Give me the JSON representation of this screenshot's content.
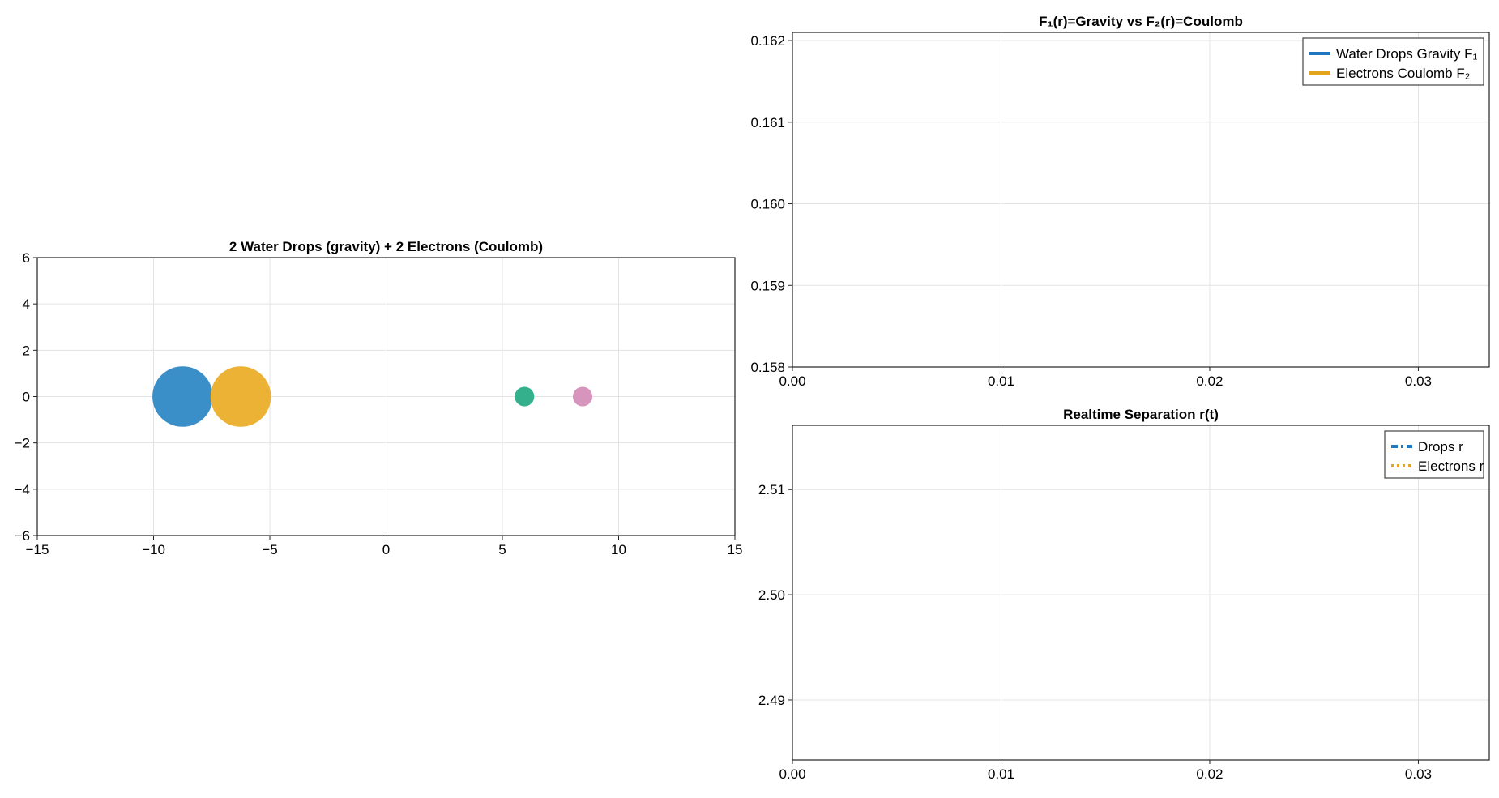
{
  "chart_data": [
    {
      "type": "scatter",
      "title": "2 Water Drops (gravity) + 2 Electrons (Coulomb)",
      "xlim": [
        -15,
        15
      ],
      "ylim": [
        -6,
        6
      ],
      "xticks": [
        -15,
        -10,
        -5,
        0,
        5,
        10,
        15
      ],
      "yticks": [
        -6,
        -4,
        -2,
        0,
        2,
        4,
        6
      ],
      "xtick_labels": [
        "−15",
        "−10",
        "−5",
        "0",
        "5",
        "10",
        "15"
      ],
      "ytick_labels": [
        "−6",
        "−4",
        "−2",
        "0",
        "2",
        "4",
        "6"
      ],
      "grid": true,
      "points": [
        {
          "x": -8.75,
          "y": 0,
          "radius": 1.3,
          "color": "#3a8fc9"
        },
        {
          "x": -6.25,
          "y": 0,
          "radius": 1.3,
          "color": "#ecb235"
        },
        {
          "x": 5.95,
          "y": 0,
          "radius": 0.42,
          "color": "#35b08c"
        },
        {
          "x": 8.45,
          "y": 0,
          "radius": 0.42,
          "color": "#d795bd"
        }
      ]
    },
    {
      "type": "line",
      "title": "F₁(r)=Gravity   vs   F₂(r)=Coulomb",
      "xlim": [
        0,
        0.0334
      ],
      "ylim": [
        0.158,
        0.1621
      ],
      "xticks": [
        0,
        0.01,
        0.02,
        0.03
      ],
      "yticks": [
        0.158,
        0.159,
        0.16,
        0.161,
        0.162
      ],
      "xtick_labels": [
        "0.00",
        "0.01",
        "0.02",
        "0.03"
      ],
      "ytick_labels": [
        "0.158",
        "0.159",
        "0.160",
        "0.161",
        "0.162"
      ],
      "grid": true,
      "legend_position": "top-right",
      "series": [
        {
          "name": "Water Drops Gravity F₁",
          "color": "#1f77c0",
          "style": "solid",
          "values": []
        },
        {
          "name": "Electrons Coulomb F₂",
          "color": "#e3a41e",
          "style": "solid",
          "values": []
        }
      ]
    },
    {
      "type": "line",
      "title": "Realtime Separation r(t)",
      "xlim": [
        0,
        0.0334
      ],
      "ylim": [
        2.4843,
        2.5161
      ],
      "xticks": [
        0,
        0.01,
        0.02,
        0.03
      ],
      "yticks": [
        2.49,
        2.5,
        2.51
      ],
      "xtick_labels": [
        "0.00",
        "0.01",
        "0.02",
        "0.03"
      ],
      "ytick_labels": [
        "2.49",
        "2.50",
        "2.51"
      ],
      "grid": true,
      "legend_position": "top-right",
      "series": [
        {
          "name": "Drops r",
          "color": "#1f77c0",
          "style": "dashdot",
          "values": []
        },
        {
          "name": "Electrons r",
          "color": "#e3a41e",
          "style": "dotted",
          "values": []
        }
      ]
    }
  ]
}
